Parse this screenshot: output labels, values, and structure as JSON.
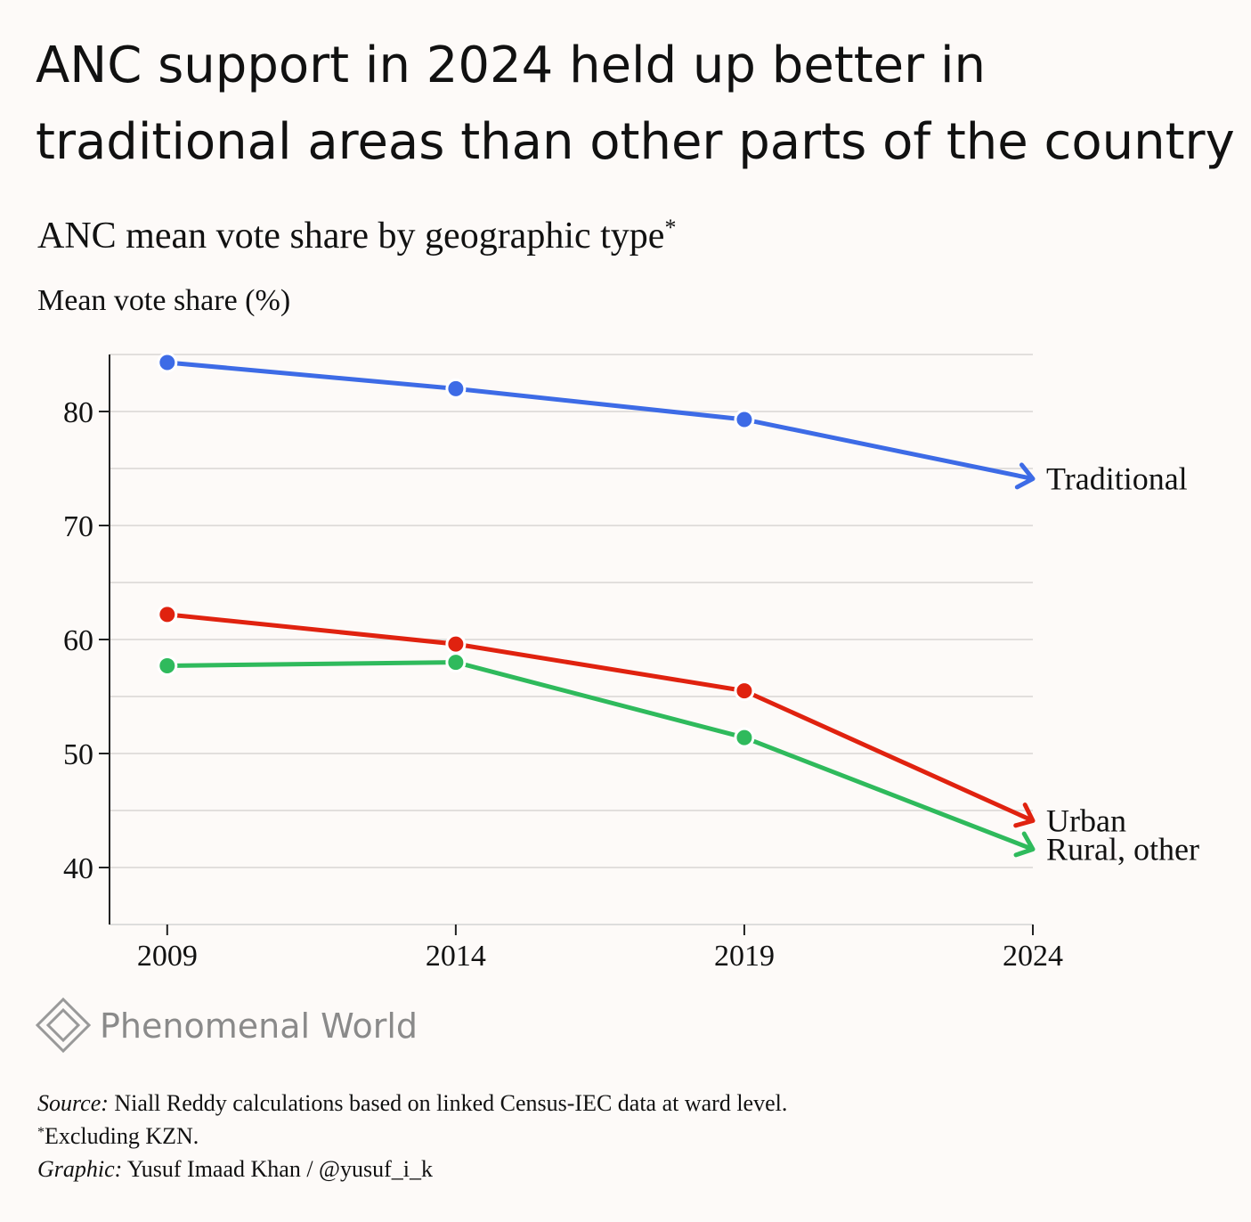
{
  "chart_data": {
    "type": "line",
    "title_lines": [
      "ANC support in 2024 held up better in",
      "traditional areas than other parts of the country"
    ],
    "subtitle": "ANC mean vote share by geographic type",
    "subtitle_mark": "*",
    "y_label": "Mean vote share (%)",
    "x": [
      2009,
      2014,
      2019,
      2024
    ],
    "xlim": [
      2008,
      2024
    ],
    "xticks": [
      2009,
      2014,
      2019,
      2024
    ],
    "ylim": [
      35,
      85
    ],
    "yticks": [
      40,
      50,
      60,
      70,
      80
    ],
    "minor_gridlines": [
      45,
      55,
      65,
      75,
      85
    ],
    "grid": true,
    "series": [
      {
        "name": "Traditional",
        "color": "#3d6be6",
        "values": [
          84.3,
          82.0,
          79.3,
          74.1
        ]
      },
      {
        "name": "Urban",
        "color": "#e0220f",
        "values": [
          62.2,
          59.6,
          55.5,
          44.1
        ]
      },
      {
        "name": "Rural, other",
        "color": "#2fba5c",
        "values": [
          57.7,
          58.0,
          51.4,
          41.6
        ]
      }
    ],
    "logo": "Phenomenal World",
    "source_label": "Source:",
    "source": "Niall Reddy calculations based on linked Census-IEC data at ward level.",
    "note_mark": "*",
    "note": "Excluding KZN.",
    "graphic_label": "Graphic:",
    "graphic": "Yusuf Imaad Khan / @yusuf_i_k"
  }
}
